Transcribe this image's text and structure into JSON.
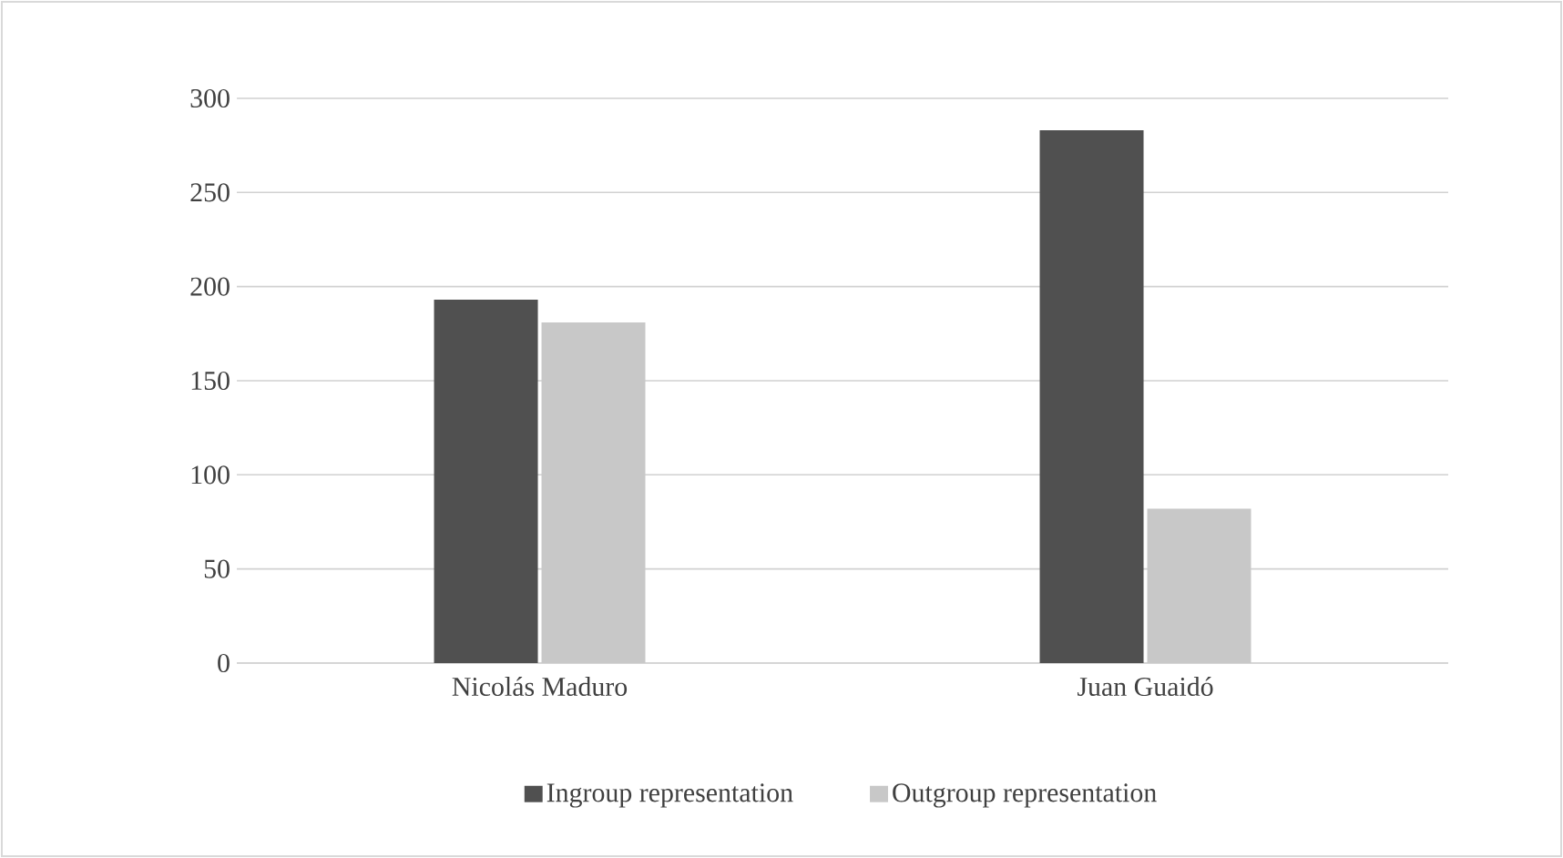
{
  "chart_data": {
    "type": "bar",
    "categories": [
      "Nicolás Maduro",
      "Juan Guaidó"
    ],
    "series": [
      {
        "name": "Ingroup representation",
        "color": "#505050",
        "values": [
          193,
          283
        ]
      },
      {
        "name": "Outgroup representation",
        "color": "#c8c8c8",
        "values": [
          181,
          82
        ]
      }
    ],
    "ylim": [
      0,
      300
    ],
    "yticks": [
      0,
      50,
      100,
      150,
      200,
      250,
      300
    ],
    "grid": "y",
    "legend": "bottom"
  }
}
